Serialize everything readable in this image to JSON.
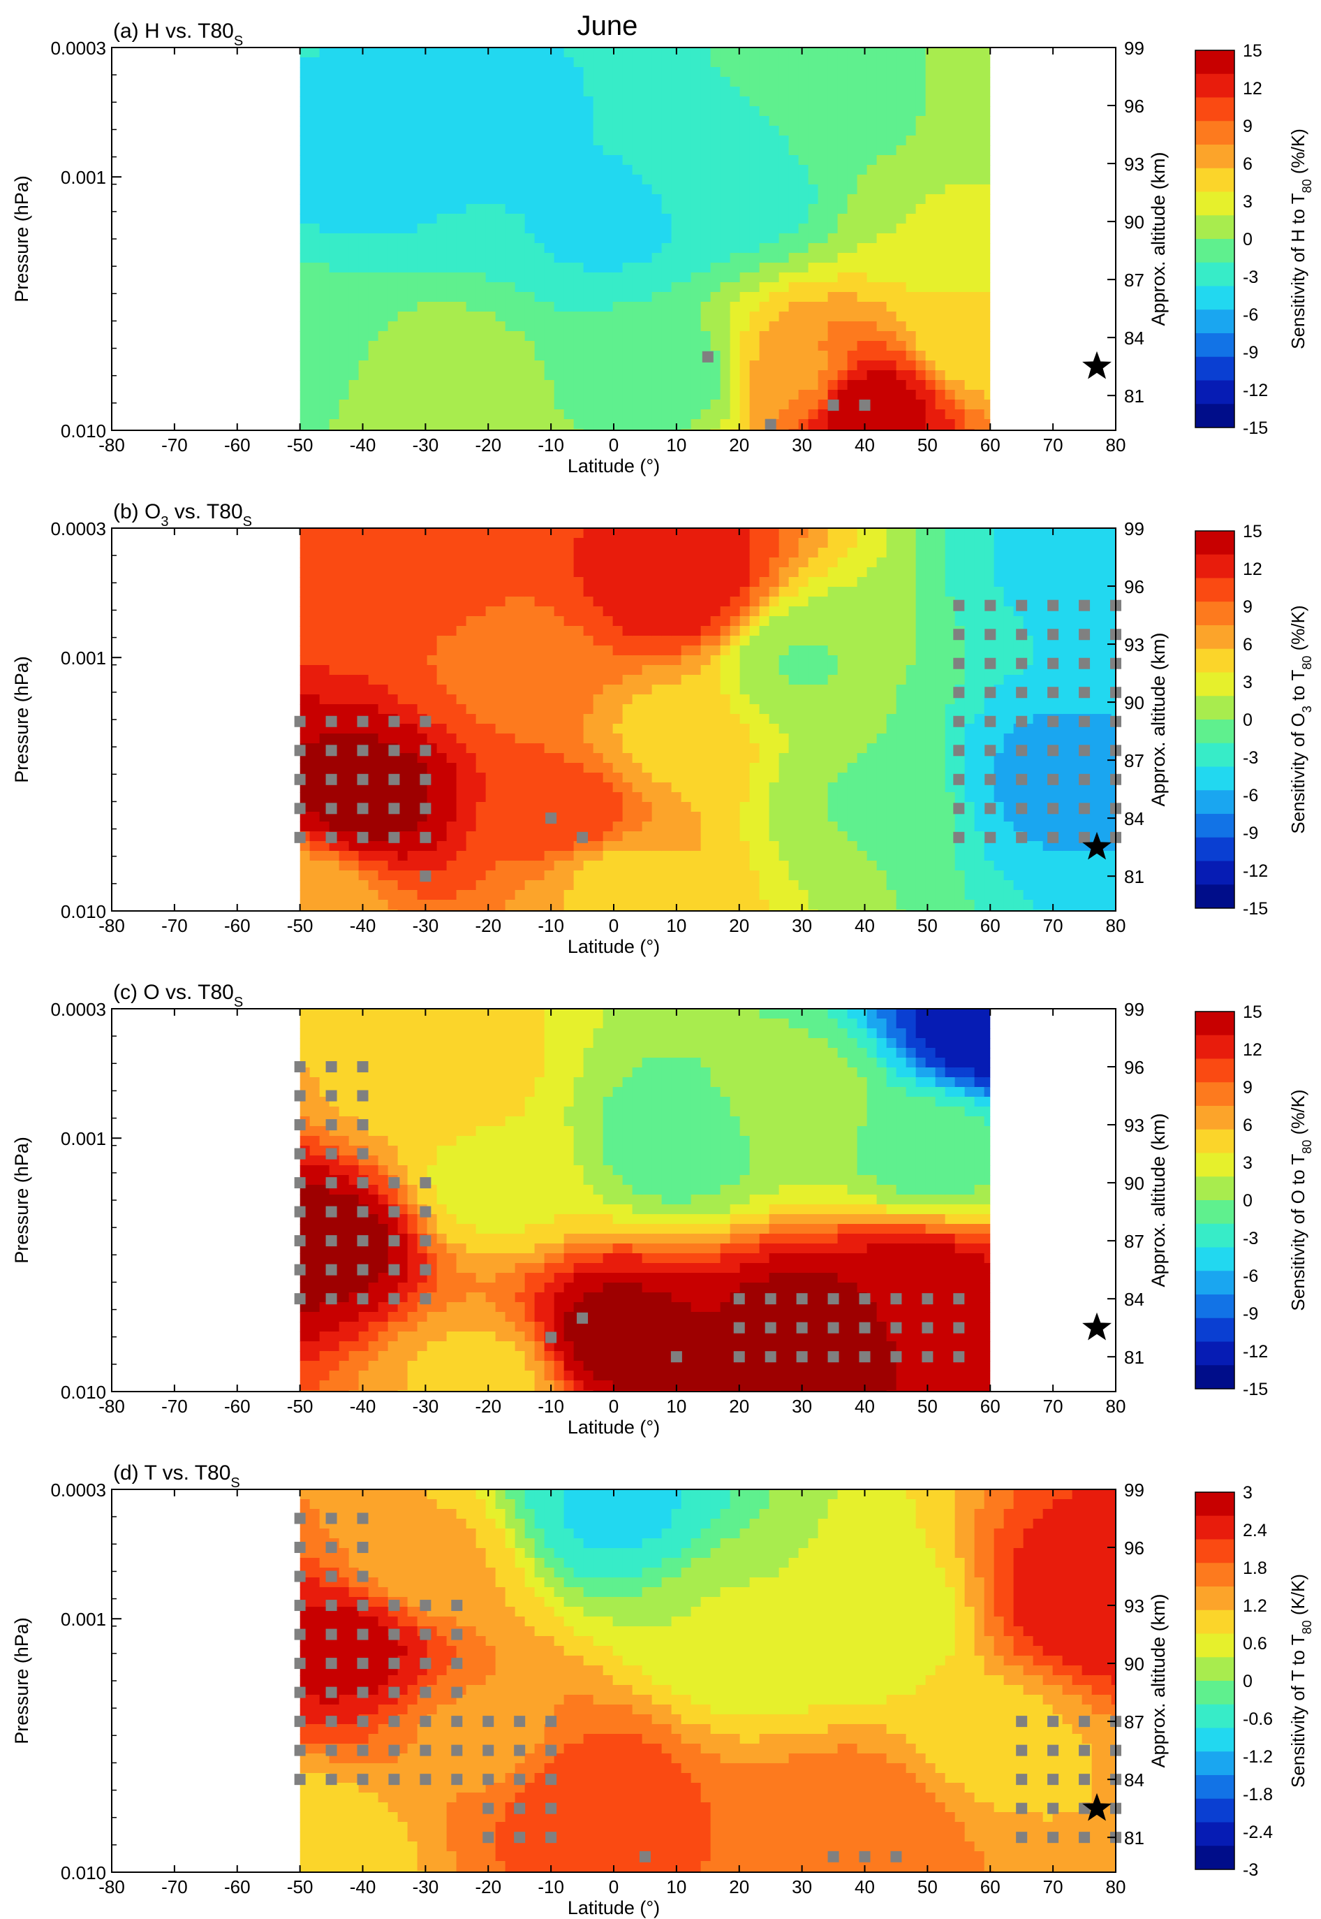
{
  "figure": {
    "month_title": "June"
  },
  "chart_data": [
    {
      "type": "heatmap",
      "panel_label": "(a) H vs. T80",
      "panel_label_sub": "S",
      "xlabel": "Latitude (°)",
      "ylabel": "Pressure (hPa)",
      "y2label": "Approx. altitude (km)",
      "colorbar_label": {
        "pre": "Sensitivity of H to T",
        "sub": "80",
        "post": " (%/K)"
      },
      "xlim": [
        -80,
        80
      ],
      "x_ticks": [
        "-80",
        "-70",
        "-60",
        "-50",
        "-40",
        "-30",
        "-20",
        "-10",
        "0",
        "10",
        "20",
        "30",
        "40",
        "50",
        "60",
        "70",
        "80"
      ],
      "y_ticks": [
        "0.0003",
        "0.001",
        "0.010"
      ],
      "y2_ticks": [
        "99",
        "96",
        "93",
        "90",
        "87",
        "84",
        "81"
      ],
      "colorbar_ticks": [
        "15",
        "12",
        "9",
        "6",
        "3",
        "0",
        "-3",
        "-6",
        "-9",
        "-12",
        "-15"
      ],
      "clim": [
        -15,
        15
      ],
      "data_x_range": [
        -50,
        60
      ],
      "star": {
        "lat": 77,
        "alt": 82.5
      },
      "field": [
        {
          "lat": -50,
          "alt": 84,
          "v": -2
        },
        {
          "lat": -40,
          "alt": 92,
          "v": -5
        },
        {
          "lat": -20,
          "alt": 95,
          "v": -5
        },
        {
          "lat": 0,
          "alt": 90,
          "v": -5
        },
        {
          "lat": 20,
          "alt": 92,
          "v": -4
        },
        {
          "lat": 40,
          "alt": 95,
          "v": -1
        },
        {
          "lat": 55,
          "alt": 90,
          "v": 1
        },
        {
          "lat": 58,
          "alt": 84,
          "v": 3
        },
        {
          "lat": 40,
          "alt": 80.5,
          "v": 14
        },
        {
          "lat": 30,
          "alt": 82,
          "v": 6
        },
        {
          "lat": -30,
          "alt": 82,
          "v": 0
        },
        {
          "lat": 10,
          "alt": 82,
          "v": -2
        }
      ],
      "stipple": [
        {
          "lat": 15,
          "alt": 83
        },
        {
          "lat": 35,
          "alt": 80.5
        },
        {
          "lat": 40,
          "alt": 80.5
        },
        {
          "lat": 25,
          "alt": 79.5
        }
      ]
    },
    {
      "type": "heatmap",
      "panel_label": "(b) O",
      "panel_label_sub": "3",
      "panel_label_post": " vs. T80",
      "panel_label_sub2": "S",
      "xlabel": "Latitude (°)",
      "ylabel": "Pressure (hPa)",
      "y2label": "Approx. altitude (km)",
      "colorbar_label": {
        "pre": "Sensitivity of O",
        "sub0": "3",
        "mid": " to T",
        "sub": "80",
        "post": " (%/K)"
      },
      "xlim": [
        -80,
        80
      ],
      "x_ticks": [
        "-80",
        "-70",
        "-60",
        "-50",
        "-40",
        "-30",
        "-20",
        "-10",
        "0",
        "10",
        "20",
        "30",
        "40",
        "50",
        "60",
        "70",
        "80"
      ],
      "y_ticks": [
        "0.0003",
        "0.001",
        "0.010"
      ],
      "y2_ticks": [
        "99",
        "96",
        "93",
        "90",
        "87",
        "84",
        "81"
      ],
      "colorbar_ticks": [
        "15",
        "12",
        "9",
        "6",
        "3",
        "0",
        "-3",
        "-6",
        "-9",
        "-12",
        "-15"
      ],
      "clim": [
        -15,
        15
      ],
      "data_x_range": [
        -50,
        80
      ],
      "star": {
        "lat": 77,
        "alt": 82.5
      },
      "field": [
        {
          "lat": -40,
          "alt": 85,
          "v": 15
        },
        {
          "lat": -30,
          "alt": 97,
          "v": 9
        },
        {
          "lat": -15,
          "alt": 92,
          "v": 8
        },
        {
          "lat": 10,
          "alt": 96,
          "v": 12
        },
        {
          "lat": -7,
          "alt": 84,
          "v": 10
        },
        {
          "lat": 10,
          "alt": 88,
          "v": 4
        },
        {
          "lat": 30,
          "alt": 92,
          "v": -1
        },
        {
          "lat": 40,
          "alt": 85,
          "v": -1
        },
        {
          "lat": 70,
          "alt": 86,
          "v": -7
        },
        {
          "lat": 75,
          "alt": 97,
          "v": -5
        },
        {
          "lat": -50,
          "alt": 80,
          "v": 5
        },
        {
          "lat": 0,
          "alt": 81,
          "v": 4
        }
      ],
      "stipple_ranges": [
        {
          "lat": [
            -50,
            -30
          ],
          "alt": [
            83,
            89
          ]
        },
        {
          "lat": [
            55,
            80
          ],
          "alt": [
            83,
            96
          ]
        }
      ],
      "stipple": [
        {
          "lat": -10,
          "alt": 84
        },
        {
          "lat": -5,
          "alt": 83
        },
        {
          "lat": -30,
          "alt": 81
        }
      ]
    },
    {
      "type": "heatmap",
      "panel_label": "(c) O vs. T80",
      "panel_label_sub": "S",
      "xlabel": "Latitude (°)",
      "ylabel": "Pressure (hPa)",
      "y2label": "Approx. altitude (km)",
      "colorbar_label": {
        "pre": "Sensitivity of O to T",
        "sub": "80",
        "post": " (%/K)"
      },
      "xlim": [
        -80,
        80
      ],
      "x_ticks": [
        "-80",
        "-70",
        "-60",
        "-50",
        "-40",
        "-30",
        "-20",
        "-10",
        "0",
        "10",
        "20",
        "30",
        "40",
        "50",
        "60",
        "70",
        "80"
      ],
      "y_ticks": [
        "0.0003",
        "0.001",
        "0.010"
      ],
      "y2_ticks": [
        "99",
        "96",
        "93",
        "90",
        "87",
        "84",
        "81"
      ],
      "colorbar_ticks": [
        "15",
        "12",
        "9",
        "6",
        "3",
        "0",
        "-3",
        "-6",
        "-9",
        "-12",
        "-15"
      ],
      "clim": [
        -15,
        15
      ],
      "data_x_range": [
        -50,
        60
      ],
      "star": {
        "lat": 77,
        "alt": 82.5
      },
      "field": [
        {
          "lat": -45,
          "alt": 87,
          "v": 15
        },
        {
          "lat": -30,
          "alt": 95,
          "v": 4
        },
        {
          "lat": 0,
          "alt": 82,
          "v": 15
        },
        {
          "lat": 30,
          "alt": 82.5,
          "v": 15
        },
        {
          "lat": 48,
          "alt": 84,
          "v": 14
        },
        {
          "lat": 10,
          "alt": 92,
          "v": -2
        },
        {
          "lat": 30,
          "alt": 94,
          "v": 0
        },
        {
          "lat": 50,
          "alt": 92,
          "v": -2
        },
        {
          "lat": 60,
          "alt": 98,
          "v": -14
        },
        {
          "lat": -20,
          "alt": 90,
          "v": 2
        },
        {
          "lat": -20,
          "alt": 80,
          "v": 4
        }
      ],
      "stipple_ranges": [
        {
          "lat": [
            -50,
            -40
          ],
          "alt": [
            84,
            96
          ]
        },
        {
          "lat": [
            -35,
            -30
          ],
          "alt": [
            84,
            90
          ]
        },
        {
          "lat": [
            20,
            55
          ],
          "alt": [
            81,
            85
          ]
        }
      ],
      "stipple": [
        {
          "lat": -10,
          "alt": 82
        },
        {
          "lat": -5,
          "alt": 83
        },
        {
          "lat": 10,
          "alt": 81
        }
      ]
    },
    {
      "type": "heatmap",
      "panel_label": "(d) T vs. T80",
      "panel_label_sub": "S",
      "xlabel": "Latitude (°)",
      "ylabel": "Pressure (hPa)",
      "y2label": "Approx. altitude (km)",
      "colorbar_label": {
        "pre": "Sensitivity of T to T",
        "sub": "80",
        "post": " (K/K)"
      },
      "xlim": [
        -80,
        80
      ],
      "x_ticks": [
        "-80",
        "-70",
        "-60",
        "-50",
        "-40",
        "-30",
        "-20",
        "-10",
        "0",
        "10",
        "20",
        "30",
        "40",
        "50",
        "60",
        "70",
        "80"
      ],
      "y_ticks": [
        "0.0003",
        "0.001",
        "0.010"
      ],
      "y2_ticks": [
        "99",
        "96",
        "93",
        "90",
        "87",
        "84",
        "81"
      ],
      "colorbar_ticks": [
        "3",
        "2.4",
        "1.8",
        "1.2",
        "0.6",
        "0",
        "-0.6",
        "-1.2",
        "-1.8",
        "-2.4",
        "-3"
      ],
      "clim": [
        -3,
        3
      ],
      "data_x_range": [
        -50,
        80
      ],
      "star": {
        "lat": 77,
        "alt": 82.5
      },
      "field": [
        {
          "lat": -42,
          "alt": 91,
          "v": 2.6
        },
        {
          "lat": -30,
          "alt": 95,
          "v": 1.0
        },
        {
          "lat": -5,
          "alt": 83,
          "v": 2.0
        },
        {
          "lat": 0,
          "alt": 98,
          "v": -1.0
        },
        {
          "lat": 20,
          "alt": 92,
          "v": 0.2
        },
        {
          "lat": 40,
          "alt": 92,
          "v": 0.2
        },
        {
          "lat": 77,
          "alt": 93,
          "v": 2.4
        },
        {
          "lat": 40,
          "alt": 82,
          "v": 1.6
        },
        {
          "lat": -50,
          "alt": 80,
          "v": 0.6
        },
        {
          "lat": 60,
          "alt": 86,
          "v": 0.8
        },
        {
          "lat": -20,
          "alt": 86,
          "v": 1.2
        }
      ],
      "stipple_ranges": [
        {
          "lat": [
            -50,
            -40
          ],
          "alt": [
            84,
            98
          ]
        },
        {
          "lat": [
            -35,
            -25
          ],
          "alt": [
            84,
            93
          ]
        },
        {
          "lat": [
            -20,
            -10
          ],
          "alt": [
            81,
            87
          ]
        },
        {
          "lat": [
            65,
            80
          ],
          "alt": [
            81,
            87
          ]
        }
      ],
      "stipple": [
        {
          "lat": 35,
          "alt": 80
        },
        {
          "lat": 40,
          "alt": 80
        },
        {
          "lat": 45,
          "alt": 80
        },
        {
          "lat": 5,
          "alt": 80
        }
      ]
    }
  ]
}
